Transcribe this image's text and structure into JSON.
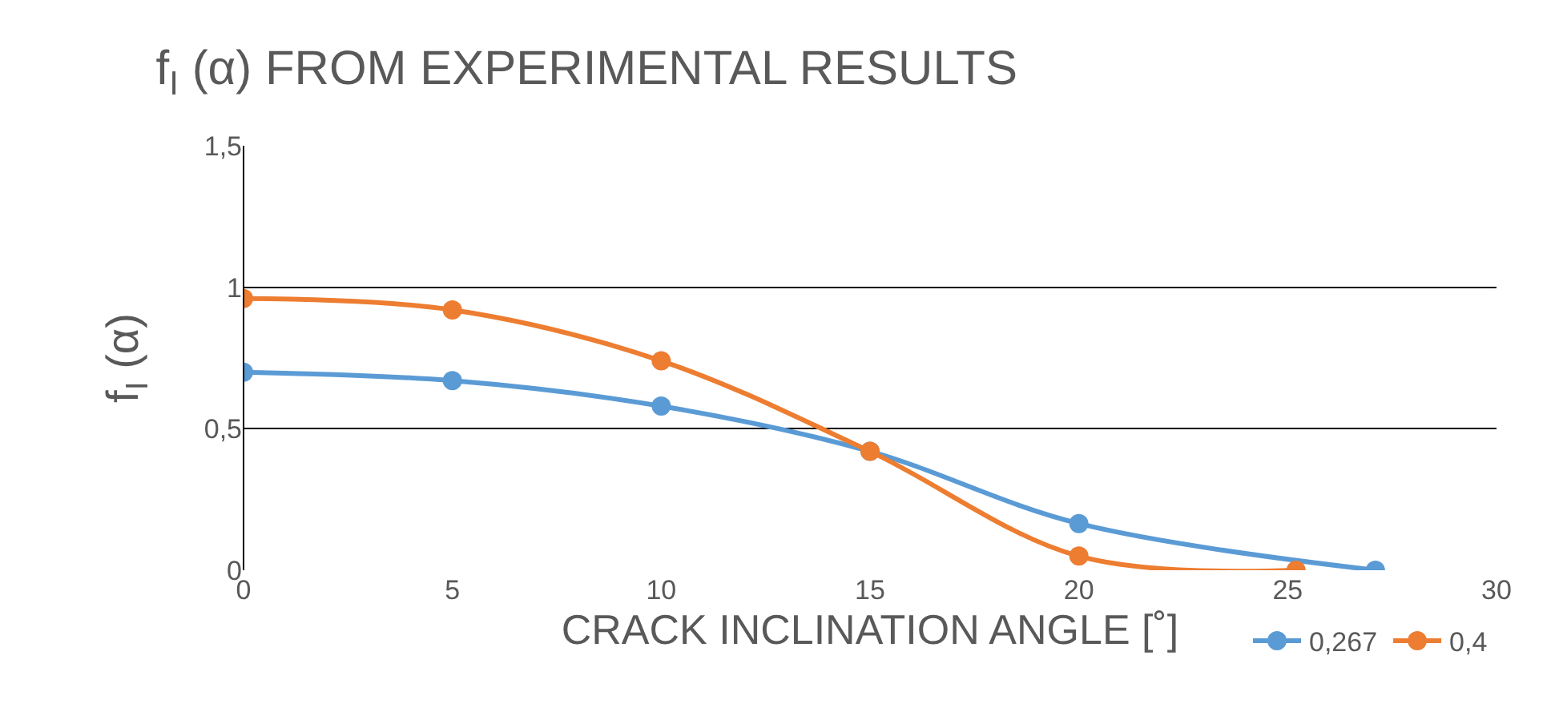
{
  "chart_data": {
    "type": "line",
    "title": "f$_{I}$ (α) FROM EXPERIMENTAL RESULTS",
    "xlabel": "CRACK INCLINATION ANGLE [˚]",
    "ylabel": "f$_{I}$ (α)",
    "series": [
      {
        "name": "0,267",
        "color": "#5b9bd5",
        "x": [
          0,
          5,
          10,
          15,
          20,
          27.1
        ],
        "values": [
          0.7,
          0.67,
          0.58,
          0.42,
          0.165,
          0
        ]
      },
      {
        "name": "0,4",
        "color": "#ed7d31",
        "x": [
          0,
          5,
          10,
          15,
          20,
          25.2
        ],
        "values": [
          0.96,
          0.92,
          0.74,
          0.42,
          0.05,
          0
        ]
      }
    ],
    "xlim": [
      0,
      30
    ],
    "xticks": [
      0,
      5,
      10,
      15,
      20,
      25,
      30
    ],
    "ylim": [
      0,
      1.5
    ],
    "yticks": [
      0,
      {
        "value": 0.5,
        "label": "0,5"
      },
      1,
      {
        "value": 1.5,
        "label": "1,5"
      }
    ],
    "grid": "y",
    "legend": "bottom right",
    "marker": "circle",
    "line_style": "solid"
  }
}
